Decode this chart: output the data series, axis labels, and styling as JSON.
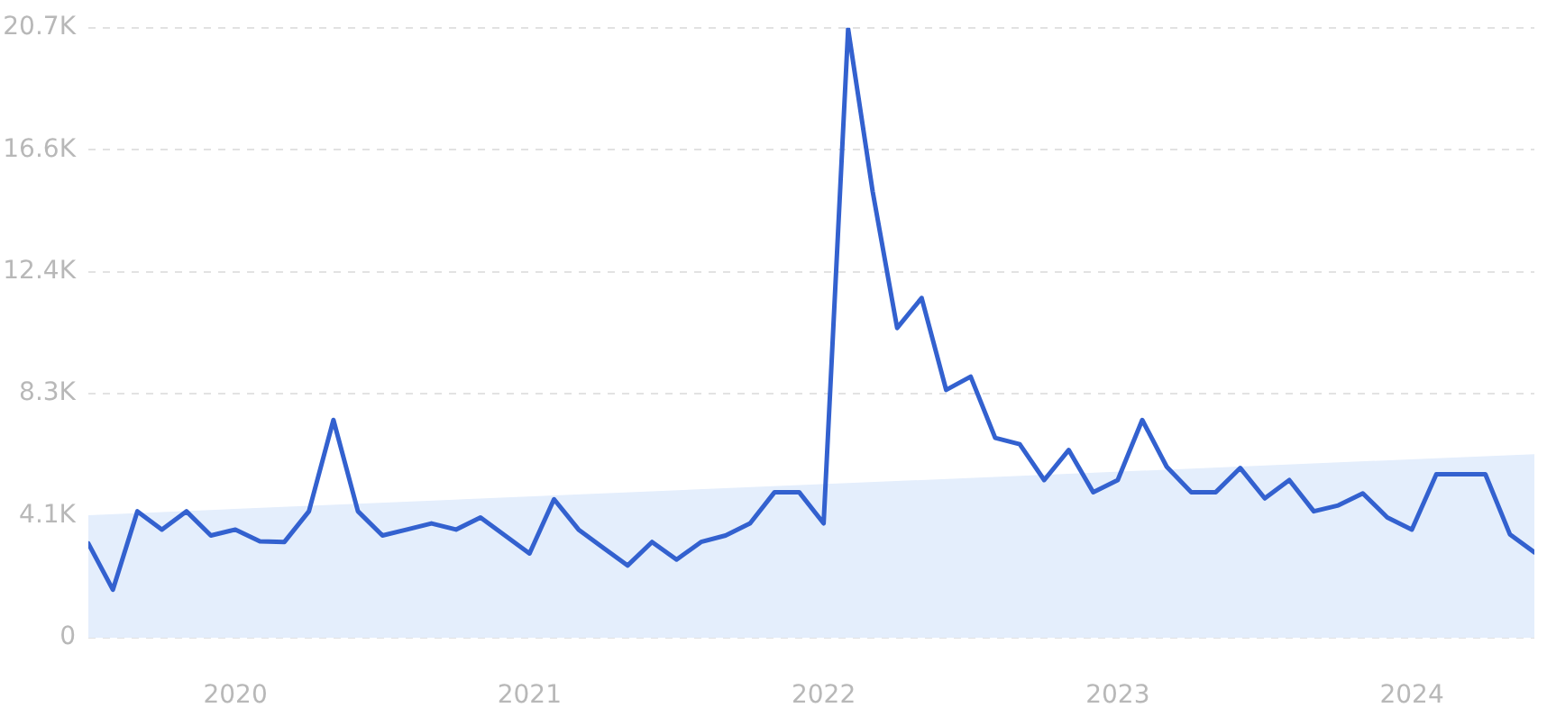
{
  "chart_data": {
    "type": "line",
    "x": [
      "2019-07",
      "2019-08",
      "2019-09",
      "2019-10",
      "2019-11",
      "2019-12",
      "2020-01",
      "2020-02",
      "2020-03",
      "2020-04",
      "2020-05",
      "2020-06",
      "2020-07",
      "2020-08",
      "2020-09",
      "2020-10",
      "2020-11",
      "2020-12",
      "2021-01",
      "2021-02",
      "2021-03",
      "2021-04",
      "2021-05",
      "2021-06",
      "2021-07",
      "2021-08",
      "2021-09",
      "2021-10",
      "2021-11",
      "2021-12",
      "2022-01",
      "2022-02",
      "2022-03",
      "2022-04",
      "2022-05",
      "2022-06",
      "2022-07",
      "2022-08",
      "2022-09",
      "2022-10",
      "2022-11",
      "2022-12",
      "2023-01",
      "2023-02",
      "2023-03",
      "2023-04",
      "2023-05",
      "2023-06",
      "2023-07",
      "2023-08",
      "2023-09",
      "2023-10",
      "2023-11",
      "2023-12",
      "2024-01",
      "2024-02",
      "2024-03",
      "2024-04",
      "2024-05",
      "2024-06"
    ],
    "series": [
      {
        "type": "area",
        "color": "#e4eefc",
        "x": [
          "2019-07",
          "2024-06"
        ],
        "values": [
          4160,
          6230
        ]
      },
      {
        "color": "#3361cf",
        "values": [
          3200,
          1630,
          4290,
          3670,
          4290,
          3470,
          3670,
          3270,
          3250,
          4290,
          7390,
          4290,
          3470,
          3670,
          3880,
          3670,
          4080,
          3470,
          2860,
          4700,
          3670,
          3060,
          2450,
          3250,
          2650,
          3250,
          3470,
          3880,
          4940,
          4940,
          3880,
          20660,
          15150,
          10510,
          11530,
          8410,
          8860,
          6780,
          6570,
          5350,
          6370,
          4940,
          5350,
          7390,
          5800,
          4940,
          4940,
          5760,
          4730,
          5350,
          4290,
          4490,
          4900,
          4080,
          3670,
          5550,
          5550,
          5550,
          3510,
          2900
        ]
      }
    ],
    "xlim": [
      "2019-07",
      "2024-06"
    ],
    "xticks": [
      "2020",
      "2021",
      "2022",
      "2023",
      "2024"
    ],
    "ylim": [
      0,
      20700
    ],
    "yticks": [
      0,
      {
        "value": 4140,
        "label": "4.1K"
      },
      {
        "value": 8280,
        "label": "8.3K"
      },
      {
        "value": 12420,
        "label": "12.4K"
      },
      {
        "value": 16560,
        "label": "16.6K"
      },
      {
        "value": 20700,
        "label": "20.7K"
      }
    ],
    "grid": "y",
    "legend": false,
    "marker": "none",
    "line_style": "solid"
  }
}
